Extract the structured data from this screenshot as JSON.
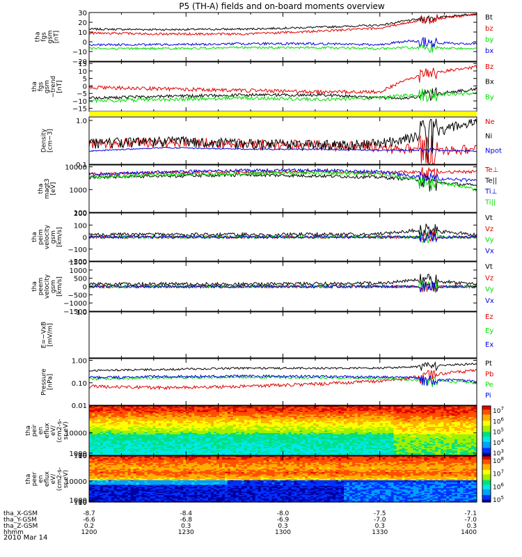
{
  "title": "P5 (TH-A) fields and on-board moments overview",
  "date_label": "2010 Mar 14",
  "colors": {
    "black": "#000000",
    "red": "#e00000",
    "green": "#00e000",
    "blue": "#0000e0",
    "yellow": "#ffff00"
  },
  "xaxis": {
    "rows": [
      {
        "label": "tha_X-GSM",
        "values": [
          "-8.7",
          "-8.4",
          "-8.0",
          "-7.5",
          "-7.1"
        ]
      },
      {
        "label": "tha_Y-GSM",
        "values": [
          "-6.6",
          "-6.8",
          "-6.9",
          "-7.0",
          "-7.0"
        ]
      },
      {
        "label": "tha_Z-GSM",
        "values": [
          "0.2",
          "0.3",
          "0.3",
          "0.3",
          "0.3"
        ]
      },
      {
        "label": "hhmm",
        "values": [
          "1200",
          "1230",
          "1300",
          "1330",
          "1400"
        ]
      }
    ],
    "time_min": 1200,
    "time_max": 1400
  },
  "chart_data": [
    {
      "type": "line",
      "ylabel": [
        "tha",
        "fgs",
        "gsm",
        "[nT]"
      ],
      "ylim": [
        -20,
        30
      ],
      "yticks": [
        "30",
        "20",
        "10",
        "0",
        "−10",
        "−20"
      ],
      "ytick_values": [
        30,
        20,
        10,
        0,
        -10,
        -20
      ],
      "series": [
        {
          "name": "Bt",
          "color": "black",
          "profile": [
            [
              0,
              13
            ],
            [
              40,
              12.5
            ],
            [
              80,
              13
            ],
            [
              120,
              15
            ],
            [
              150,
              17
            ],
            [
              165,
              22
            ],
            [
              180,
              25
            ],
            [
              200,
              29
            ]
          ],
          "noise": 1
        },
        {
          "name": "bz",
          "color": "red",
          "profile": [
            [
              0,
              9
            ],
            [
              40,
              8
            ],
            [
              80,
              8
            ],
            [
              120,
              11
            ],
            [
              150,
              14
            ],
            [
              165,
              20
            ],
            [
              180,
              24
            ],
            [
              200,
              28
            ]
          ],
          "noise": 1.2
        },
        {
          "name": "by",
          "color": "green",
          "profile": [
            [
              0,
              -7
            ],
            [
              40,
              -7
            ],
            [
              80,
              -6
            ],
            [
              120,
              -6
            ],
            [
              150,
              -7
            ],
            [
              165,
              -6
            ],
            [
              200,
              -7
            ]
          ],
          "noise": 1.2
        },
        {
          "name": "bx",
          "color": "blue",
          "profile": [
            [
              0,
              -3
            ],
            [
              40,
              -3
            ],
            [
              80,
              -2
            ],
            [
              120,
              -2
            ],
            [
              150,
              -3
            ],
            [
              165,
              1
            ],
            [
              180,
              -1
            ],
            [
              200,
              -2
            ]
          ],
          "noise": 1.2
        }
      ]
    },
    {
      "type": "line",
      "ylabel": [
        "tha",
        "fgs",
        "gsm",
        "−trend",
        "[nT]"
      ],
      "ylim": [
        -17,
        16
      ],
      "yticks": [
        "15",
        "10",
        "5",
        "0",
        "−5",
        "−10",
        "−15"
      ],
      "ytick_values": [
        15,
        10,
        5,
        0,
        -5,
        -10,
        -15
      ],
      "series": [
        {
          "name": "Bz",
          "color": "red",
          "profile": [
            [
              0,
              -1
            ],
            [
              40,
              -2
            ],
            [
              80,
              -3
            ],
            [
              120,
              -4
            ],
            [
              150,
              -4
            ],
            [
              165,
              5
            ],
            [
              180,
              9
            ],
            [
              200,
              13
            ]
          ],
          "noise": 1.2
        },
        {
          "name": "Bx",
          "color": "black",
          "profile": [
            [
              0,
              -8
            ],
            [
              40,
              -7
            ],
            [
              80,
              -6
            ],
            [
              120,
              -6
            ],
            [
              150,
              -8
            ],
            [
              165,
              -8
            ],
            [
              180,
              -5
            ],
            [
              200,
              -2
            ]
          ],
          "noise": 1
        },
        {
          "name": "By",
          "color": "green",
          "profile": [
            [
              0,
              -10
            ],
            [
              40,
              -9
            ],
            [
              80,
              -8
            ],
            [
              120,
              -9
            ],
            [
              150,
              -8
            ],
            [
              165,
              -6
            ],
            [
              200,
              -5
            ]
          ],
          "noise": 1.2
        }
      ]
    },
    {
      "type": "band",
      "color": "yellow"
    },
    {
      "type": "line",
      "scale": "log",
      "ylabel": [
        "Density",
        "[cm−3]"
      ],
      "ylim": [
        0.1,
        1.2
      ],
      "yticks": [
        "1.0",
        "0.1"
      ],
      "ytick_values": [
        1.0,
        0.1
      ],
      "series": [
        {
          "name": "Ne",
          "color": "red",
          "profile": [
            [
              0,
              0.3
            ],
            [
              40,
              0.33
            ],
            [
              80,
              0.3
            ],
            [
              120,
              0.28
            ],
            [
              150,
              0.25
            ],
            [
              165,
              0.23
            ],
            [
              180,
              0.22
            ],
            [
              200,
              0.22
            ]
          ],
          "noise": 0.08
        },
        {
          "name": "Ni",
          "color": "black",
          "profile": [
            [
              0,
              0.3
            ],
            [
              40,
              0.35
            ],
            [
              80,
              0.3
            ],
            [
              120,
              0.28
            ],
            [
              150,
              0.3
            ],
            [
              165,
              0.4
            ],
            [
              180,
              0.6
            ],
            [
              200,
              0.9
            ]
          ],
          "noise": 0.08
        },
        {
          "name": "Npot",
          "color": "blue",
          "profile": [
            [
              0,
              0.2
            ],
            [
              40,
              0.24
            ],
            [
              80,
              0.22
            ],
            [
              120,
              0.22
            ],
            [
              150,
              0.21
            ],
            [
              165,
              0.21
            ],
            [
              200,
              0.2
            ]
          ],
          "noise": 0.01
        }
      ]
    },
    {
      "type": "line",
      "scale": "log",
      "ylabel": [
        "tha",
        "magt3",
        "[eV]"
      ],
      "ylim": [
        100,
        12000
      ],
      "yticks": [
        "10000",
        "1000",
        "100"
      ],
      "ytick_values": [
        10000,
        1000,
        100
      ],
      "series": [
        {
          "name": "Te⊥",
          "color": "red",
          "profile": [
            [
              0,
              5000
            ],
            [
              40,
              5500
            ],
            [
              80,
              6000
            ],
            [
              120,
              6000
            ],
            [
              150,
              5500
            ],
            [
              165,
              6000
            ],
            [
              200,
              6000
            ]
          ],
          "noise": 0.05
        },
        {
          "name": "Te||",
          "color": "black",
          "profile": [
            [
              0,
              3500
            ],
            [
              40,
              4000
            ],
            [
              80,
              4500
            ],
            [
              120,
              4000
            ],
            [
              150,
              3500
            ],
            [
              165,
              3000
            ],
            [
              180,
              2000
            ],
            [
              200,
              1500
            ]
          ],
          "noise": 0.05
        },
        {
          "name": "Ti⊥",
          "color": "blue",
          "profile": [
            [
              0,
              4500
            ],
            [
              40,
              6000
            ],
            [
              80,
              7000
            ],
            [
              120,
              7000
            ],
            [
              150,
              6000
            ],
            [
              165,
              4000
            ],
            [
              180,
              3000
            ],
            [
              200,
              2500
            ]
          ],
          "noise": 0.05
        },
        {
          "name": "Ti||",
          "color": "green",
          "profile": [
            [
              0,
              3500
            ],
            [
              40,
              4500
            ],
            [
              80,
              5000
            ],
            [
              120,
              5500
            ],
            [
              150,
              5000
            ],
            [
              165,
              3000
            ],
            [
              180,
              2000
            ],
            [
              200,
              1000
            ]
          ],
          "noise": 0.05
        }
      ]
    },
    {
      "type": "line",
      "ylabel": [
        "tha",
        "peim",
        "velocity",
        "gsm",
        "[km/s]"
      ],
      "ylim": [
        -200,
        200
      ],
      "yticks": [
        "200",
        "100",
        "0",
        "−100",
        "−200"
      ],
      "ytick_values": [
        200,
        100,
        0,
        -100,
        -200
      ],
      "series": [
        {
          "name": "Vt",
          "color": "black",
          "profile": [
            [
              0,
              20
            ],
            [
              100,
              20
            ],
            [
              150,
              25
            ],
            [
              170,
              60
            ],
            [
              200,
              20
            ]
          ],
          "noise": 15
        },
        {
          "name": "Vz",
          "color": "red",
          "profile": [
            [
              0,
              0
            ],
            [
              200,
              0
            ]
          ],
          "noise": 12
        },
        {
          "name": "Vy",
          "color": "green",
          "profile": [
            [
              0,
              0
            ],
            [
              200,
              0
            ]
          ],
          "noise": 12
        },
        {
          "name": "Vx",
          "color": "blue",
          "profile": [
            [
              0,
              0
            ],
            [
              200,
              0
            ]
          ],
          "noise": 12
        }
      ]
    },
    {
      "type": "line",
      "ylabel": [
        "tha",
        "peem",
        "velocity",
        "gsm",
        "[km/s]"
      ],
      "ylim": [
        -1500,
        1500
      ],
      "yticks": [
        "1500",
        "1000",
        "500",
        "0",
        "−500",
        "−1000",
        "−1500"
      ],
      "ytick_values": [
        1500,
        1000,
        500,
        0,
        -500,
        -1000,
        -1500
      ],
      "series": [
        {
          "name": "Vt",
          "color": "black",
          "profile": [
            [
              0,
              150
            ],
            [
              100,
              150
            ],
            [
              150,
              200
            ],
            [
              170,
              400
            ],
            [
              200,
              150
            ]
          ],
          "noise": 100
        },
        {
          "name": "Vz",
          "color": "red",
          "profile": [
            [
              0,
              0
            ],
            [
              200,
              0
            ]
          ],
          "noise": 90
        },
        {
          "name": "Vy",
          "color": "green",
          "profile": [
            [
              0,
              0
            ],
            [
              200,
              0
            ]
          ],
          "noise": 90
        },
        {
          "name": "Vx",
          "color": "blue",
          "profile": [
            [
              0,
              0
            ],
            [
              200,
              0
            ]
          ],
          "noise": 90
        }
      ]
    },
    {
      "type": "empty",
      "ylabel": [
        "E=−VxB",
        "[mV/m]"
      ],
      "ylim": [
        0,
        1
      ],
      "yticks": [
        "1.0"
      ],
      "ytick_values": [
        1.0
      ],
      "series": [
        {
          "name": "Ez",
          "color": "red"
        },
        {
          "name": "Ey",
          "color": "green"
        },
        {
          "name": "Ex",
          "color": "blue"
        }
      ]
    },
    {
      "type": "line",
      "scale": "log",
      "ylabel": [
        "Pressure",
        "[nPa]"
      ],
      "ylim": [
        0.01,
        1.2
      ],
      "yticks": [
        "1.00",
        "0.10",
        "0.01"
      ],
      "ytick_values": [
        1.0,
        0.1,
        0.01
      ],
      "series": [
        {
          "name": "Pt",
          "color": "black",
          "profile": [
            [
              0,
              0.35
            ],
            [
              40,
              0.4
            ],
            [
              80,
              0.45
            ],
            [
              120,
              0.45
            ],
            [
              150,
              0.45
            ],
            [
              165,
              0.5
            ],
            [
              180,
              0.6
            ],
            [
              200,
              0.7
            ]
          ],
          "noise": 0.03
        },
        {
          "name": "Pb",
          "color": "red",
          "profile": [
            [
              0,
              0.07
            ],
            [
              40,
              0.06
            ],
            [
              80,
              0.07
            ],
            [
              120,
              0.09
            ],
            [
              150,
              0.12
            ],
            [
              165,
              0.16
            ],
            [
              180,
              0.25
            ],
            [
              200,
              0.35
            ]
          ],
          "noise": 0.05
        },
        {
          "name": "Pe",
          "color": "green",
          "profile": [
            [
              0,
              0.15
            ],
            [
              40,
              0.17
            ],
            [
              80,
              0.18
            ],
            [
              120,
              0.17
            ],
            [
              150,
              0.16
            ],
            [
              165,
              0.14
            ],
            [
              180,
              0.12
            ],
            [
              200,
              0.1
            ]
          ],
          "noise": 0.04
        },
        {
          "name": "Pi",
          "color": "blue",
          "profile": [
            [
              0,
              0.17
            ],
            [
              40,
              0.19
            ],
            [
              80,
              0.2
            ],
            [
              120,
              0.19
            ],
            [
              150,
              0.18
            ],
            [
              165,
              0.17
            ],
            [
              180,
              0.14
            ],
            [
              200,
              0.12
            ]
          ],
          "noise": 0.04
        }
      ]
    },
    {
      "type": "heatmap",
      "ylabel": [
        "tha",
        "peir",
        "en",
        "eflux",
        "eV/",
        "(cm2-s-",
        "sr-eV)"
      ],
      "ylim": [
        8,
        22000
      ],
      "yticks": [
        "10000",
        "1000",
        "100",
        "10"
      ],
      "ytick_values": [
        10000,
        1000,
        100,
        10
      ],
      "colorbar": {
        "labels": [
          "10",
          "10",
          "10",
          "10",
          "10"
        ],
        "exponents": [
          "7",
          "6",
          "5",
          "4",
          "3"
        ]
      },
      "profile": "ion"
    },
    {
      "type": "heatmap",
      "ylabel": [
        "tha",
        "peer",
        "en",
        "eflux",
        "eV/",
        "(cm2-s-",
        "sr-eV)"
      ],
      "ylim": [
        8,
        22000
      ],
      "yticks": [
        "10000",
        "1000",
        "100",
        "10"
      ],
      "ytick_values": [
        10000,
        1000,
        100,
        10
      ],
      "colorbar": {
        "labels": [
          "10",
          "10",
          "10",
          "10"
        ],
        "exponents": [
          "8",
          "7",
          "6",
          "5"
        ]
      },
      "profile": "electron"
    }
  ]
}
